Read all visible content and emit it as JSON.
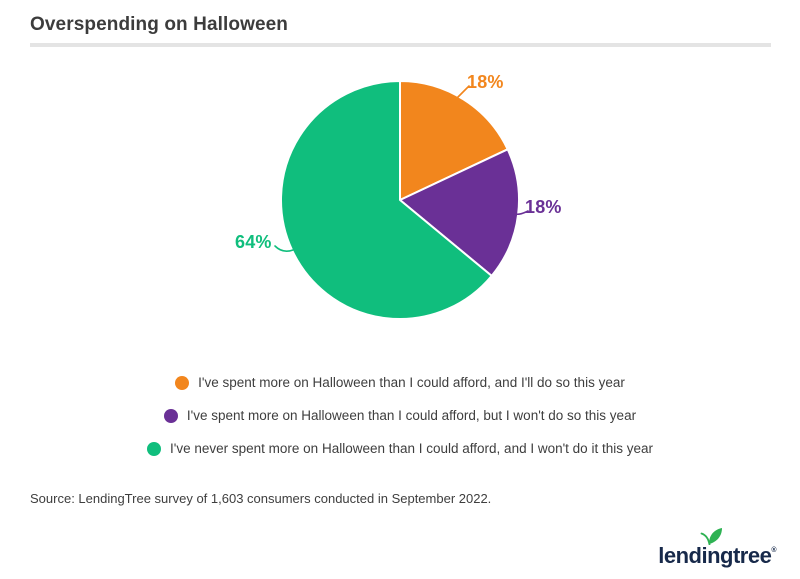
{
  "header": {
    "title": "Overspending on Halloween"
  },
  "chart_data": {
    "type": "pie",
    "title": "Overspending on Halloween",
    "start_angle_deg": 0,
    "direction": "clockwise",
    "legend_position": "bottom",
    "slices": [
      {
        "label": "I've spent more on Halloween than I could afford, and I'll do so this year",
        "value": 18,
        "value_label": "18%",
        "color": "#F2861D"
      },
      {
        "label": "I've spent more on Halloween than I could afford, but I won't do so this year",
        "value": 18,
        "value_label": "18%",
        "color": "#6A3096"
      },
      {
        "label": "I've never spent more on Halloween than I could afford, and I won't do it this year",
        "value": 64,
        "value_label": "64%",
        "color": "#10BE7D"
      }
    ]
  },
  "footer": {
    "source": "Source: LendingTree survey of 1,603 consumers conducted in September 2022.",
    "logo_text": "lendingtree",
    "logo_mark": "®"
  },
  "colors": {
    "title_text": "#3C3C3C",
    "body_text": "#3E3E3E",
    "divider": "#E4E4E4",
    "brand_navy": "#17294A",
    "leaf_green": "#2EB253",
    "background": "#FFFFFF"
  }
}
